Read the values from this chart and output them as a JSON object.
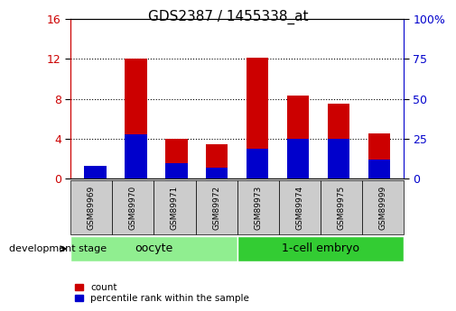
{
  "title": "GDS2387 / 1455338_at",
  "samples": [
    "GSM89969",
    "GSM89970",
    "GSM89971",
    "GSM89972",
    "GSM89973",
    "GSM89974",
    "GSM89975",
    "GSM89999"
  ],
  "count_values": [
    1.1,
    12.0,
    4.0,
    3.5,
    12.1,
    8.3,
    7.5,
    4.5
  ],
  "percentile_values": [
    8.0,
    28.0,
    9.5,
    7.0,
    19.0,
    25.0,
    25.0,
    12.0
  ],
  "groups": [
    {
      "label": "oocyte",
      "start": 0,
      "end": 4,
      "color": "#90EE90"
    },
    {
      "label": "1-cell embryo",
      "start": 4,
      "end": 8,
      "color": "#33CC33"
    }
  ],
  "ylim_left": [
    0,
    16
  ],
  "ylim_right": [
    0,
    100
  ],
  "yticks_left": [
    0,
    4,
    8,
    12,
    16
  ],
  "yticks_right": [
    0,
    25,
    50,
    75,
    100
  ],
  "bar_color_red": "#CC0000",
  "bar_color_blue": "#0000CC",
  "bar_width": 0.55,
  "background_color": "#ffffff",
  "plot_bg_color": "#ffffff",
  "tick_label_color_left": "#CC0000",
  "tick_label_color_right": "#0000CC",
  "legend_label_count": "count",
  "legend_label_percentile": "percentile rank within the sample",
  "development_stage_label": "development stage",
  "title_fontsize": 11,
  "xlabel_fontsize": 7,
  "ylabel_fontsize": 9
}
